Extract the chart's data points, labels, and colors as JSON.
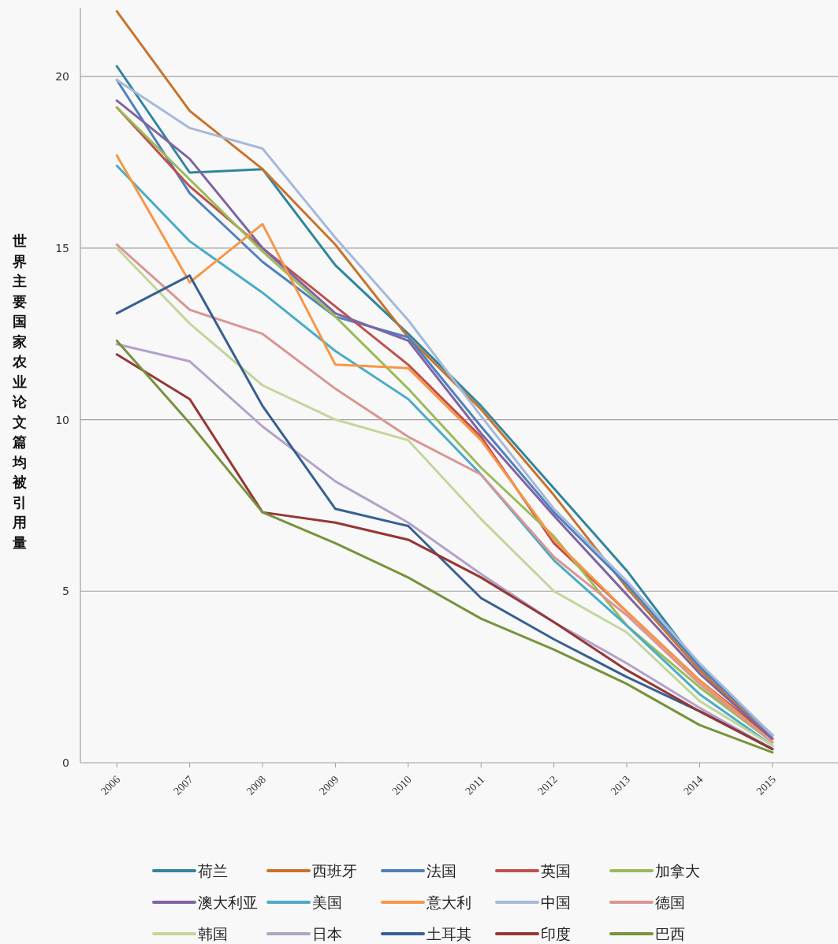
{
  "chart_data": {
    "type": "line",
    "ylabel": "世界主要国家农业论文篇均被引用量",
    "categories": [
      "2006",
      "2007",
      "2008",
      "2009",
      "2010",
      "2011",
      "2012",
      "2013",
      "2014",
      "2015"
    ],
    "ylim": [
      0,
      22
    ],
    "yticks": [
      0,
      5,
      10,
      15,
      20
    ],
    "grid": "y",
    "legend": "bottom",
    "marker": "none",
    "line_style": "solid",
    "series": [
      {
        "name": "荷兰",
        "color": "#31859c",
        "values": [
          20.3,
          17.2,
          17.3,
          14.5,
          12.5,
          10.4,
          8.0,
          5.6,
          2.8,
          0.8
        ]
      },
      {
        "name": "西班牙",
        "color": "#c8732d",
        "values": [
          21.9,
          19.0,
          17.3,
          15.1,
          12.4,
          10.3,
          7.8,
          5.1,
          2.7,
          0.7
        ]
      },
      {
        "name": "法国",
        "color": "#4f81bd",
        "values": [
          19.9,
          16.6,
          14.6,
          13.0,
          12.4,
          9.8,
          7.3,
          5.2,
          2.8,
          0.8
        ]
      },
      {
        "name": "英国",
        "color": "#c0504d",
        "values": [
          19.1,
          16.8,
          15.0,
          13.3,
          11.6,
          9.5,
          6.4,
          4.4,
          2.4,
          0.7
        ]
      },
      {
        "name": "加拿大",
        "color": "#9bbb59",
        "values": [
          19.1,
          17.0,
          14.9,
          13.0,
          10.9,
          8.6,
          6.6,
          4.0,
          2.2,
          0.6
        ]
      },
      {
        "name": "澳大利亚",
        "color": "#8064a2",
        "values": [
          19.3,
          17.6,
          15.0,
          13.1,
          12.3,
          9.6,
          7.2,
          4.9,
          2.6,
          0.7
        ]
      },
      {
        "name": "美国",
        "color": "#4bacc6",
        "values": [
          17.4,
          15.2,
          13.7,
          12.0,
          10.6,
          8.4,
          5.9,
          4.0,
          2.0,
          0.5
        ]
      },
      {
        "name": "意大利",
        "color": "#f79646",
        "values": [
          17.7,
          14.0,
          15.7,
          11.6,
          11.5,
          9.4,
          6.5,
          4.4,
          2.4,
          0.6
        ]
      },
      {
        "name": "中国",
        "color": "#a5b9db",
        "values": [
          19.9,
          18.5,
          17.9,
          15.3,
          12.9,
          10.1,
          7.4,
          5.3,
          2.9,
          0.8
        ]
      },
      {
        "name": "德国",
        "color": "#d99694",
        "values": [
          15.1,
          13.2,
          12.5,
          10.9,
          9.5,
          8.4,
          6.0,
          4.3,
          2.3,
          0.6
        ]
      },
      {
        "name": "韩国",
        "color": "#c3d69b",
        "values": [
          15.0,
          12.8,
          11.0,
          10.0,
          9.4,
          7.1,
          5.0,
          3.8,
          1.8,
          0.5
        ]
      },
      {
        "name": "日本",
        "color": "#b3a2c7",
        "values": [
          12.2,
          11.7,
          9.8,
          8.2,
          7.0,
          5.5,
          4.1,
          2.9,
          1.6,
          0.4
        ]
      },
      {
        "name": "土耳其",
        "color": "#376092",
        "values": [
          13.1,
          14.2,
          10.4,
          7.4,
          6.9,
          4.8,
          3.6,
          2.5,
          1.5,
          0.4
        ]
      },
      {
        "name": "印度",
        "color": "#953735",
        "values": [
          11.9,
          10.6,
          7.3,
          7.0,
          6.5,
          5.4,
          4.1,
          2.7,
          1.5,
          0.4
        ]
      },
      {
        "name": "巴西",
        "color": "#77933c",
        "values": [
          12.3,
          9.9,
          7.3,
          6.4,
          5.4,
          4.2,
          3.3,
          2.3,
          1.1,
          0.3
        ]
      }
    ]
  }
}
